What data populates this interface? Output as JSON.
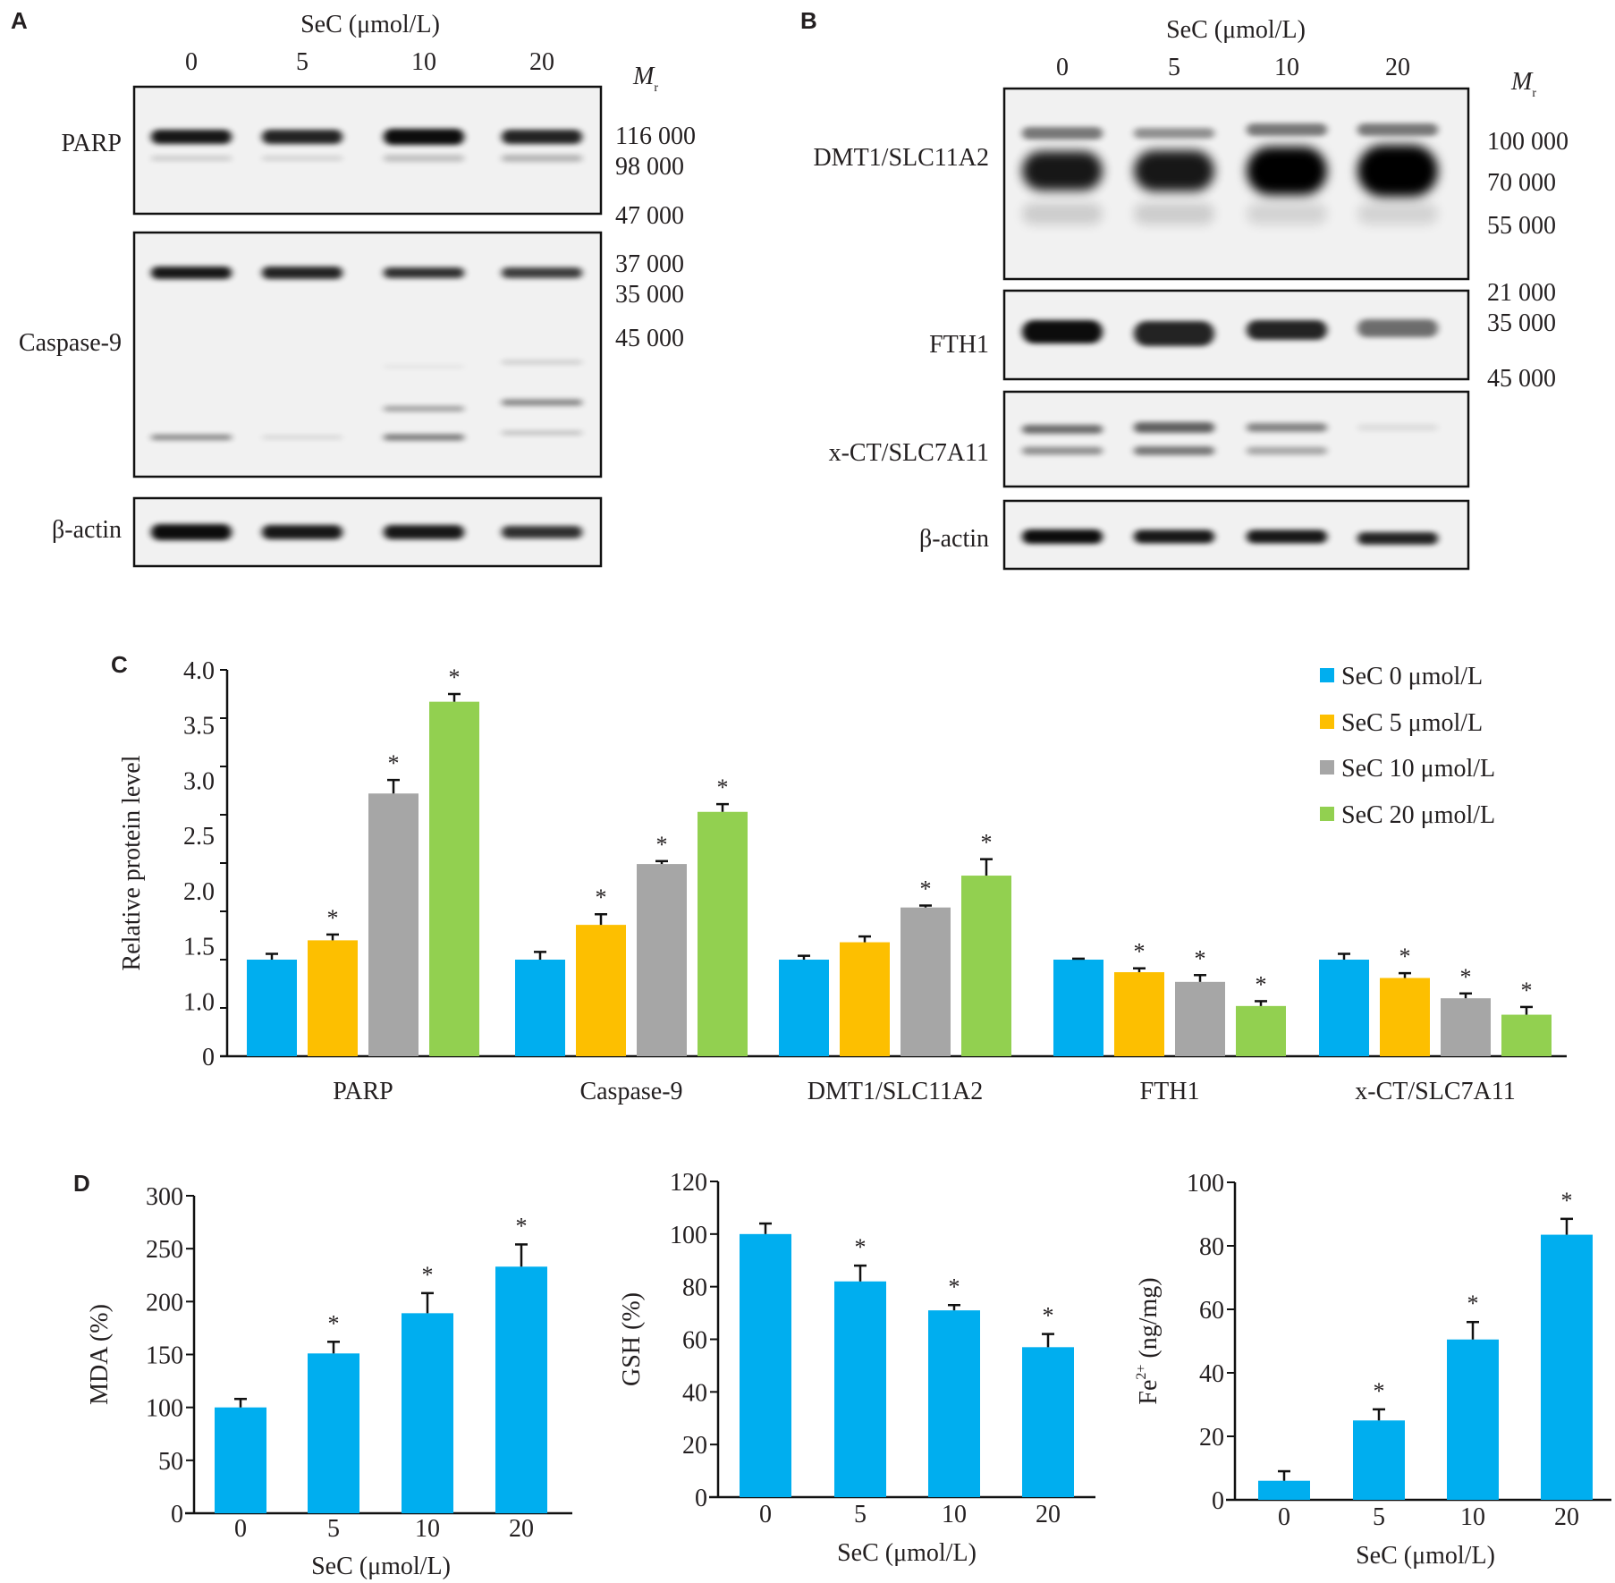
{
  "panel_a": {
    "letter": "A",
    "title": "SeC (μmol/L)",
    "lanes": [
      "0",
      "5",
      "10",
      "20"
    ],
    "mr_label": "M",
    "mr_sub": "r",
    "rows": [
      "PARP",
      "Caspase-9",
      "β-actin"
    ],
    "markers": [
      "116 000",
      "98 000",
      "47 000",
      "37 000",
      "35 000",
      "45 000"
    ]
  },
  "panel_b": {
    "letter": "B",
    "title": "SeC (μmol/L)",
    "lanes": [
      "0",
      "5",
      "10",
      "20"
    ],
    "mr_label": "M",
    "mr_sub": "r",
    "rows": [
      "DMT1/SLC11A2",
      "FTH1",
      "x-CT/SLC7A11",
      "β-actin"
    ],
    "markers": [
      "100 000",
      "70 000",
      "55 000",
      "21 000",
      "35 000",
      "45 000"
    ]
  },
  "chart_data": [
    {
      "panel": "C",
      "type": "bar",
      "ylabel": "Relative protein level",
      "xlabel": "",
      "ylim": [
        0,
        4.0
      ],
      "ytick_labels": [
        "4.0",
        "3.5",
        "3.0",
        "2.5",
        "2.0",
        "1.5",
        "1.0",
        "0"
      ],
      "categories": [
        "PARP",
        "Caspase-9",
        "DMT1/SLC11A2",
        "FTH1",
        "x-CT/SLC7A11"
      ],
      "legend_position": "top-right",
      "series": [
        {
          "name": "SeC 0 μmol/L",
          "color": "#00aeef",
          "values": [
            1.0,
            1.0,
            1.0,
            1.0,
            1.0
          ],
          "errors": [
            0.06,
            0.08,
            0.04,
            0.01,
            0.06
          ],
          "significant": [
            false,
            false,
            false,
            false,
            false
          ]
        },
        {
          "name": "SeC 5 μmol/L",
          "color": "#fdbf00",
          "values": [
            1.2,
            1.36,
            1.18,
            0.87,
            0.81
          ],
          "errors": [
            0.06,
            0.11,
            0.06,
            0.04,
            0.05
          ],
          "significant": [
            true,
            true,
            false,
            true,
            true
          ]
        },
        {
          "name": "SeC 10 μmol/L",
          "color": "#a6a6a6",
          "values": [
            2.72,
            1.99,
            1.54,
            0.77,
            0.6
          ],
          "errors": [
            0.14,
            0.03,
            0.02,
            0.07,
            0.05
          ],
          "significant": [
            true,
            true,
            true,
            true,
            true
          ]
        },
        {
          "name": "SeC 20 μmol/L",
          "color": "#92d050",
          "values": [
            3.67,
            2.53,
            1.87,
            0.52,
            0.43
          ],
          "errors": [
            0.08,
            0.08,
            0.17,
            0.05,
            0.08
          ],
          "significant": [
            true,
            true,
            true,
            true,
            true
          ]
        }
      ],
      "significance_mark": "*"
    },
    {
      "panel": "D",
      "type": "bar",
      "ylabel": "MDA (%)",
      "xlabel": "SeC (μmol/L)",
      "ylim": [
        0,
        300
      ],
      "yticks": [
        "0",
        "50",
        "100",
        "150",
        "200",
        "250",
        "300"
      ],
      "categories": [
        "0",
        "5",
        "10",
        "20"
      ],
      "color": "#00aeef",
      "values": [
        100,
        151,
        189,
        233
      ],
      "errors": [
        8,
        11,
        19,
        21
      ],
      "significant": [
        false,
        true,
        true,
        true
      ],
      "significance_mark": "*"
    },
    {
      "type": "bar",
      "ylabel": "GSH (%)",
      "xlabel": "SeC (μmol/L)",
      "ylim": [
        0,
        120
      ],
      "yticks": [
        "0",
        "20",
        "40",
        "60",
        "80",
        "100",
        "120"
      ],
      "categories": [
        "0",
        "5",
        "10",
        "20"
      ],
      "color": "#00aeef",
      "values": [
        100,
        82,
        71,
        57
      ],
      "errors": [
        4,
        6,
        2,
        5
      ],
      "significant": [
        false,
        true,
        true,
        true
      ],
      "significance_mark": "*"
    },
    {
      "type": "bar",
      "ylabel": "Fe",
      "ylabel_sup": "2+",
      "ylabel_rest": " (ng/mg)",
      "xlabel": "SeC (μmol/L)",
      "ylim": [
        0,
        100
      ],
      "yticks": [
        "0",
        "20",
        "40",
        "60",
        "80",
        "100"
      ],
      "categories": [
        "0",
        "5",
        "10",
        "20"
      ],
      "color": "#00aeef",
      "values": [
        6,
        25,
        50.5,
        83.5
      ],
      "errors": [
        3,
        3.5,
        5.5,
        5
      ],
      "significant": [
        false,
        true,
        true,
        true
      ],
      "significance_mark": "*"
    }
  ]
}
